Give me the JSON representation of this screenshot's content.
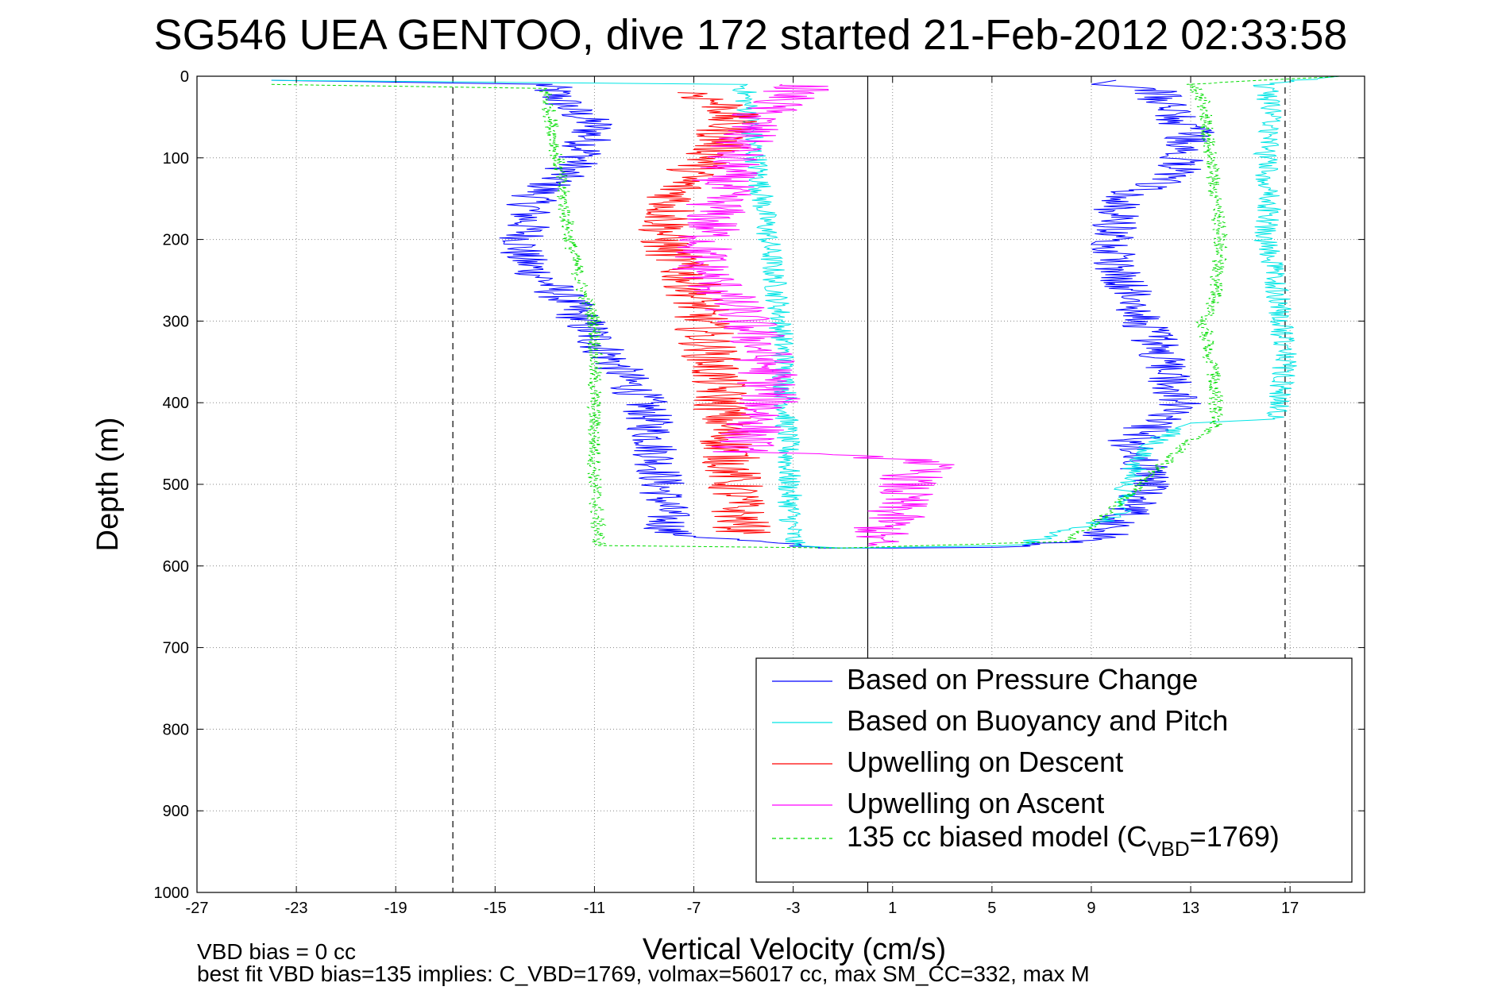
{
  "chart_data": {
    "type": "line",
    "title": "SG546 UEA GENTOO, dive 172 started 21-Feb-2012 02:33:58",
    "xlabel": "Vertical Velocity (cm/s)",
    "ylabel": "Depth (m)",
    "xlim": [
      -27,
      20
    ],
    "ylim": [
      0,
      1000
    ],
    "y_reversed": true,
    "xticks": [
      "-27",
      "-23",
      "-19",
      "-15",
      "-11",
      "-7",
      "-3",
      "1",
      "5",
      "9",
      "13",
      "17"
    ],
    "yticks": [
      "0",
      "100",
      "200",
      "300",
      "400",
      "500",
      "600",
      "700",
      "800",
      "900",
      "1000"
    ],
    "grid": true,
    "legend_position": "lower-right",
    "reference_lines": [
      {
        "x": -16.7,
        "style": "dashed"
      },
      {
        "x": 16.8,
        "style": "dashed"
      },
      {
        "x": 0,
        "style": "solid"
      }
    ],
    "series": [
      {
        "name": "Based on Pressure Change",
        "color": "#0000ff",
        "noise": 1.0,
        "x": [
          -24,
          -13,
          -12,
          -11,
          -11.5,
          -13.5,
          -14,
          -12,
          -10.5,
          -9,
          -8.5,
          -8,
          -2,
          1,
          6,
          9.5,
          11.5,
          10.5,
          12.5,
          11.5,
          10,
          10,
          12.5,
          13,
          12,
          11.5,
          9,
          10
        ],
        "y": [
          5,
          10,
          40,
          60,
          100,
          150,
          220,
          280,
          340,
          400,
          460,
          560,
          578,
          578,
          577,
          565,
          500,
          450,
          400,
          320,
          230,
          150,
          120,
          70,
          40,
          15,
          10,
          5
        ]
      },
      {
        "name": "Based on Buoyancy and Pitch",
        "color": "#00e5e5",
        "noise": 0.5,
        "x": [
          -24,
          -5,
          -4.5,
          -4,
          -3.5,
          -3.3,
          -3.2,
          -3.1,
          -3,
          -1,
          6,
          10,
          10.5,
          11,
          12.5,
          13,
          16.5,
          16.8,
          16.5,
          16,
          16.2,
          16,
          16.3,
          16,
          19
        ],
        "y": [
          5,
          10,
          100,
          200,
          300,
          400,
          480,
          540,
          575,
          578,
          575,
          540,
          500,
          460,
          430,
          425,
          420,
          350,
          260,
          200,
          150,
          100,
          50,
          10,
          0
        ]
      },
      {
        "name": "Upwelling on Descent",
        "color": "#ff0000",
        "noise": 1.2,
        "x": [
          -7,
          -5.5,
          -6,
          -7.5,
          -8,
          -8.2,
          -7,
          -6.5,
          -6,
          -5.8,
          -5.5,
          -5.3,
          -5
        ],
        "y": [
          20,
          40,
          90,
          130,
          170,
          200,
          260,
          320,
          380,
          420,
          470,
          520,
          560
        ]
      },
      {
        "name": "Upwelling on Ascent",
        "color": "#ff00ff",
        "noise": 1.3,
        "x": [
          -2.5,
          -4.5,
          -5.5,
          -6,
          -6.5,
          -6.8,
          -5.5,
          -4.5,
          -4,
          -4,
          -4.5,
          -5,
          -5,
          2.5,
          1.5,
          1,
          0
        ],
        "y": [
          10,
          50,
          100,
          150,
          200,
          230,
          280,
          320,
          360,
          400,
          430,
          450,
          460,
          470,
          500,
          540,
          575
        ]
      },
      {
        "name": "135 cc biased model (C_VBD=1769)",
        "color": "#00dd00",
        "noise": 0.3,
        "dashed": true,
        "x": [
          -24,
          -13,
          -12.7,
          -12,
          -11.5,
          -11,
          -11,
          -11,
          -11,
          -10.8,
          -1,
          8,
          9.5,
          11,
          13,
          14,
          14,
          13.5,
          14,
          14.2,
          13.8,
          13.5,
          13,
          19
        ],
        "y": [
          10,
          15,
          60,
          200,
          260,
          300,
          350,
          420,
          500,
          575,
          578,
          570,
          540,
          500,
          445,
          430,
          380,
          300,
          270,
          200,
          100,
          30,
          10,
          0
        ]
      }
    ],
    "legend": [
      {
        "label": "Based on Pressure Change",
        "color": "#0000ff",
        "dashed": false
      },
      {
        "label": "Based on Buoyancy and Pitch",
        "color": "#00e5e5",
        "dashed": false
      },
      {
        "label": "Upwelling on Descent",
        "color": "#ff0000",
        "dashed": false
      },
      {
        "label": "Upwelling on Ascent",
        "color": "#ff00ff",
        "dashed": false
      },
      {
        "label_main": "135 cc biased model (C",
        "label_sub": "VBD",
        "label_end": "=1769)",
        "color": "#00dd00",
        "dashed": true
      }
    ],
    "footnotes": [
      "VBD bias = 0 cc",
      "best fit VBD bias=135 implies: C_VBD=1769, volmax=56017 cc, max SM_CC=332, max M"
    ]
  }
}
